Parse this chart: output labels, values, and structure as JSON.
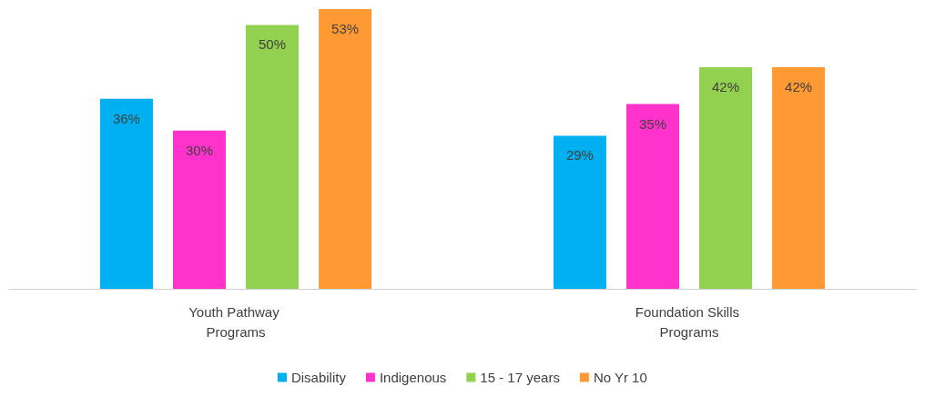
{
  "chart_data": {
    "type": "bar",
    "categories": [
      "Youth Pathway Programs",
      "Foundation Skills Programs"
    ],
    "series": [
      {
        "name": "Disability",
        "color": "#00b0f0",
        "values": [
          36,
          29
        ],
        "value_labels": [
          "36%",
          "29%"
        ]
      },
      {
        "name": "Indigenous",
        "color": "#ff33cc",
        "values": [
          30,
          35
        ],
        "value_labels": [
          "30%",
          "35%"
        ]
      },
      {
        "name": "15 - 17 years",
        "color": "#92d050",
        "values": [
          50,
          42
        ],
        "value_labels": [
          "50%",
          "42%"
        ]
      },
      {
        "name": "No Yr 10",
        "color": "#ff9933",
        "values": [
          53,
          42
        ],
        "value_labels": [
          "53%",
          "42%"
        ]
      }
    ],
    "legend": "bottom"
  }
}
